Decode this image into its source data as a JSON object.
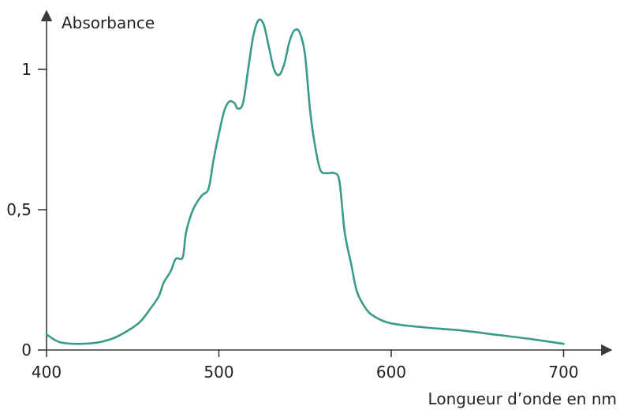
{
  "chart_data": {
    "type": "line",
    "ylabel": "Absorbance",
    "xlabel": "Longueur d’onde en nm",
    "xlim": [
      400,
      715
    ],
    "ylim": [
      0,
      1.17
    ],
    "x_ticks": [
      {
        "value": 400,
        "label": "400"
      },
      {
        "value": 500,
        "label": "500"
      },
      {
        "value": 600,
        "label": "600"
      },
      {
        "value": 700,
        "label": "700"
      }
    ],
    "y_ticks": [
      {
        "value": 0,
        "label": "0"
      },
      {
        "value": 0.5,
        "label": "0,5"
      },
      {
        "value": 1,
        "label": "1"
      }
    ],
    "grid": false,
    "legend": "none",
    "series": [
      {
        "color": "#3a9a8c",
        "points": [
          [
            400,
            0.056
          ],
          [
            405,
            0.035
          ],
          [
            410,
            0.025
          ],
          [
            420,
            0.022
          ],
          [
            430,
            0.027
          ],
          [
            440,
            0.045
          ],
          [
            450,
            0.08
          ],
          [
            455,
            0.105
          ],
          [
            460,
            0.145
          ],
          [
            465,
            0.19
          ],
          [
            468,
            0.24
          ],
          [
            472,
            0.28
          ],
          [
            475,
            0.325
          ],
          [
            479,
            0.33
          ],
          [
            481,
            0.42
          ],
          [
            485,
            0.5
          ],
          [
            490,
            0.55
          ],
          [
            494,
            0.575
          ],
          [
            497,
            0.68
          ],
          [
            500,
            0.77
          ],
          [
            503,
            0.85
          ],
          [
            506,
            0.885
          ],
          [
            509,
            0.88
          ],
          [
            511,
            0.86
          ],
          [
            514,
            0.88
          ],
          [
            517,
            1.0
          ],
          [
            520,
            1.12
          ],
          [
            523,
            1.175
          ],
          [
            526,
            1.16
          ],
          [
            529,
            1.08
          ],
          [
            532,
            1.0
          ],
          [
            535,
            0.98
          ],
          [
            538,
            1.02
          ],
          [
            541,
            1.1
          ],
          [
            544,
            1.14
          ],
          [
            547,
            1.13
          ],
          [
            550,
            1.05
          ],
          [
            553,
            0.85
          ],
          [
            556,
            0.72
          ],
          [
            559,
            0.64
          ],
          [
            563,
            0.63
          ],
          [
            567,
            0.63
          ],
          [
            570,
            0.6
          ],
          [
            573,
            0.42
          ],
          [
            577,
            0.3
          ],
          [
            580,
            0.21
          ],
          [
            585,
            0.15
          ],
          [
            590,
            0.12
          ],
          [
            600,
            0.095
          ],
          [
            620,
            0.08
          ],
          [
            640,
            0.07
          ],
          [
            660,
            0.055
          ],
          [
            680,
            0.04
          ],
          [
            700,
            0.022
          ]
        ]
      }
    ]
  }
}
